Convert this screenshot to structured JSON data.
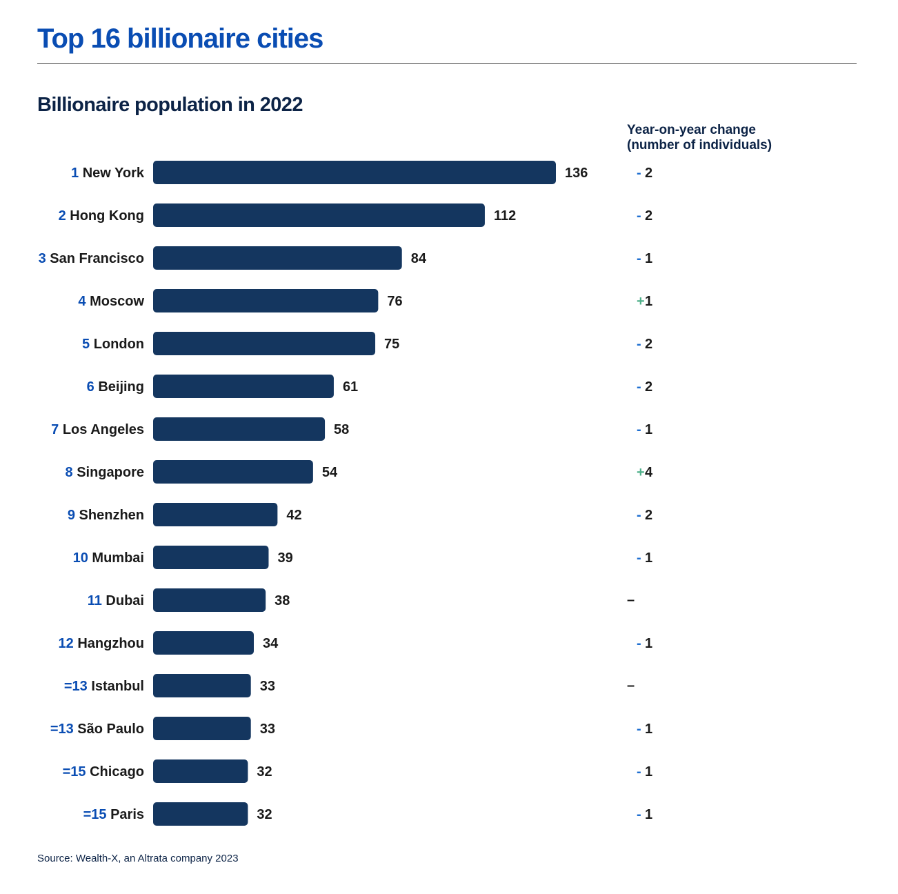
{
  "header": {
    "title": "Top 16 billionaire cities",
    "subtitle": "Billionaire population in 2022",
    "change_header_line1": "Year-on-year change",
    "change_header_line2": "(number of individuals)"
  },
  "footer": {
    "source": "Source: Wealth-X, an Altrata company 2023"
  },
  "colors": {
    "title": "#0a4db3",
    "bar": "#14365f",
    "rank": "#0a4db3",
    "label": "#1a1a1a",
    "minus_sign": "#1f6fd1",
    "plus_sign": "#4fb08a",
    "neutral": "#1a1a1a"
  },
  "chart_data": {
    "type": "bar",
    "orientation": "horizontal",
    "title": "Billionaire population in 2022",
    "xlim": [
      0,
      136
    ],
    "grid": false,
    "ranks": [
      "1",
      "2",
      "3",
      "4",
      "5",
      "6",
      "7",
      "8",
      "9",
      "10",
      "11",
      "12",
      "=13",
      "=13",
      "=15",
      "=15"
    ],
    "categories": [
      "New York",
      "Hong Kong",
      "San Francisco",
      "Moscow",
      "London",
      "Beijing",
      "Los Angeles",
      "Singapore",
      "Shenzhen",
      "Mumbai",
      "Dubai",
      "Hangzhou",
      "Istanbul",
      "São Paulo",
      "Chicago",
      "Paris"
    ],
    "values": [
      136,
      112,
      84,
      76,
      75,
      61,
      58,
      54,
      42,
      39,
      38,
      34,
      33,
      33,
      32,
      32
    ],
    "value_labels": [
      "136",
      "112",
      "84",
      "76",
      "75",
      "61",
      "58",
      "54",
      "42",
      "39",
      "38",
      "34",
      "33",
      "33",
      "32",
      "32"
    ],
    "change_header": "Year-on-year change (number of individuals)",
    "yoy_change": [
      {
        "sign": "-",
        "value": "2"
      },
      {
        "sign": "-",
        "value": "2"
      },
      {
        "sign": "-",
        "value": "1"
      },
      {
        "sign": "+",
        "value": "1"
      },
      {
        "sign": "-",
        "value": "2"
      },
      {
        "sign": "-",
        "value": "2"
      },
      {
        "sign": "-",
        "value": "1"
      },
      {
        "sign": "+",
        "value": "4"
      },
      {
        "sign": "-",
        "value": "2"
      },
      {
        "sign": "-",
        "value": "1"
      },
      {
        "sign": "–",
        "value": ""
      },
      {
        "sign": "-",
        "value": "1"
      },
      {
        "sign": "–",
        "value": ""
      },
      {
        "sign": "-",
        "value": "1"
      },
      {
        "sign": "-",
        "value": "1"
      },
      {
        "sign": "-",
        "value": "1"
      }
    ]
  }
}
